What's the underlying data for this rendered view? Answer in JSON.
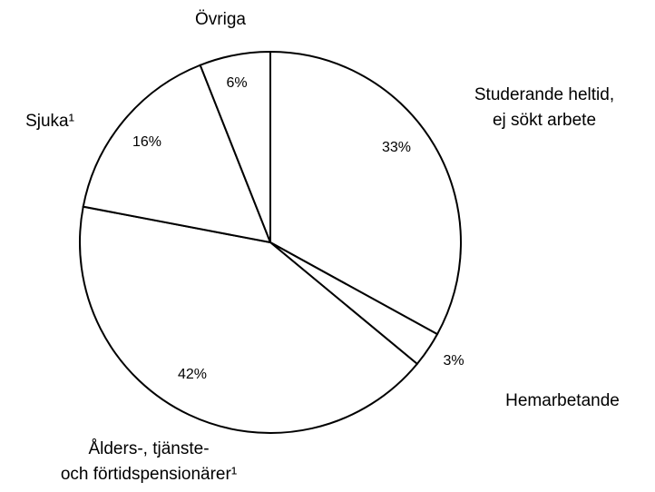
{
  "chart_data": {
    "type": "pie",
    "categories": [
      "Studerande heltid,\nej sökt arbete",
      "Hemarbetande",
      "Ålders-, tjänste-\noch förtidspensionärer¹",
      "Sjuka¹",
      "Övriga"
    ],
    "values": [
      33,
      3,
      42,
      16,
      6
    ],
    "value_labels": [
      "33%",
      "3%",
      "42%",
      "16%",
      "6%"
    ],
    "color": "#ffffff"
  }
}
